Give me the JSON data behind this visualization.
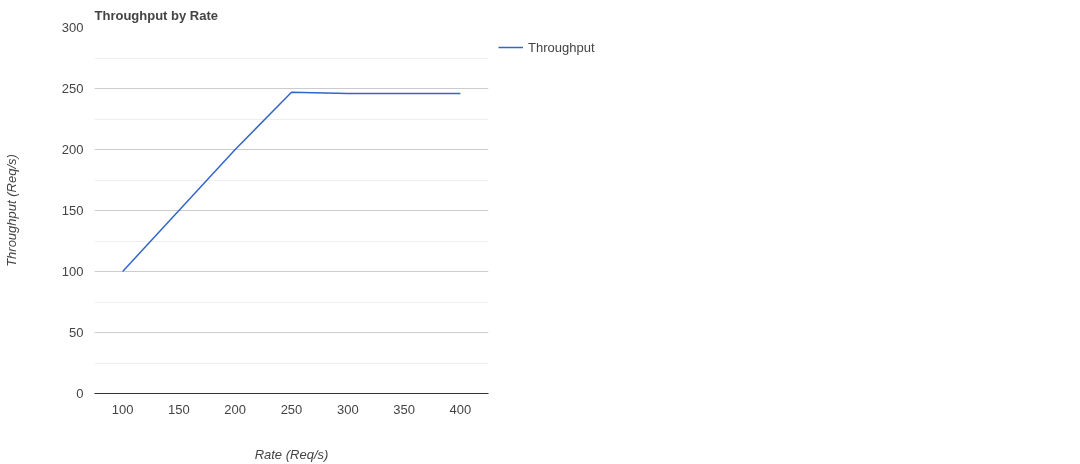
{
  "chart_data": {
    "type": "line",
    "title": "Throughput by Rate",
    "xlabel": "Rate (Req/s)",
    "ylabel": "Throughput (Req/s)",
    "x": [
      100,
      150,
      200,
      250,
      300,
      350,
      400
    ],
    "series": [
      {
        "name": "Throughput",
        "color": "#3366cc",
        "values": [
          100,
          150,
          200,
          247,
          246,
          246,
          246
        ]
      }
    ],
    "xlim": [
      75,
      425
    ],
    "xticks": [
      100,
      150,
      200,
      250,
      300,
      350,
      400
    ],
    "ylim": [
      0,
      300
    ],
    "yticks": [
      0,
      50,
      100,
      150,
      200,
      250,
      300
    ],
    "grid": "y",
    "legend": "right",
    "line_style": "solid"
  }
}
